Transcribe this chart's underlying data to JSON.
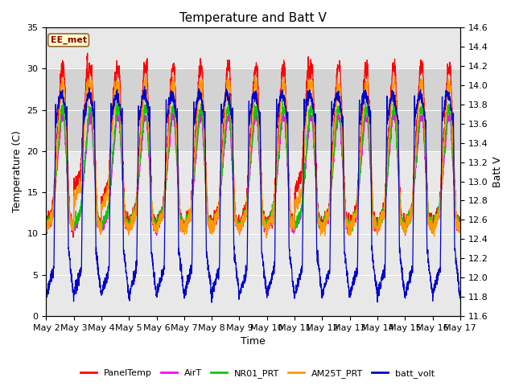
{
  "title": "Temperature and Batt V",
  "xlabel": "Time",
  "ylabel_left": "Temperature (C)",
  "ylabel_right": "Batt V",
  "annotation": "EE_met",
  "ylim_left": [
    0,
    35
  ],
  "ylim_right": [
    11.6,
    14.6
  ],
  "yticks_left": [
    0,
    5,
    10,
    15,
    20,
    25,
    30,
    35
  ],
  "yticks_right": [
    11.6,
    11.8,
    12.0,
    12.2,
    12.4,
    12.6,
    12.8,
    13.0,
    13.2,
    13.4,
    13.6,
    13.8,
    14.0,
    14.2,
    14.4,
    14.6
  ],
  "xtick_labels": [
    "May 2",
    "May 3",
    "May 4",
    "May 5",
    "May 6",
    "May 7",
    "May 8",
    "May 9",
    "May 10",
    "May 11",
    "May 12",
    "May 13",
    "May 14",
    "May 15",
    "May 16",
    "May 17"
  ],
  "colors": {
    "PanelTemp": "#ff0000",
    "AirT": "#ff00ff",
    "NR01_PRT": "#00cc00",
    "AM25T_PRT": "#ff9900",
    "batt_volt": "#0000cc"
  },
  "legend_labels": [
    "PanelTemp",
    "AirT",
    "NR01_PRT",
    "AM25T_PRT",
    "batt_volt"
  ],
  "background_color": "#ffffff",
  "plot_bg_color": "#e8e8e8",
  "band_color": "#d3d3d3",
  "title_fontsize": 11,
  "axis_fontsize": 9,
  "tick_fontsize": 8
}
